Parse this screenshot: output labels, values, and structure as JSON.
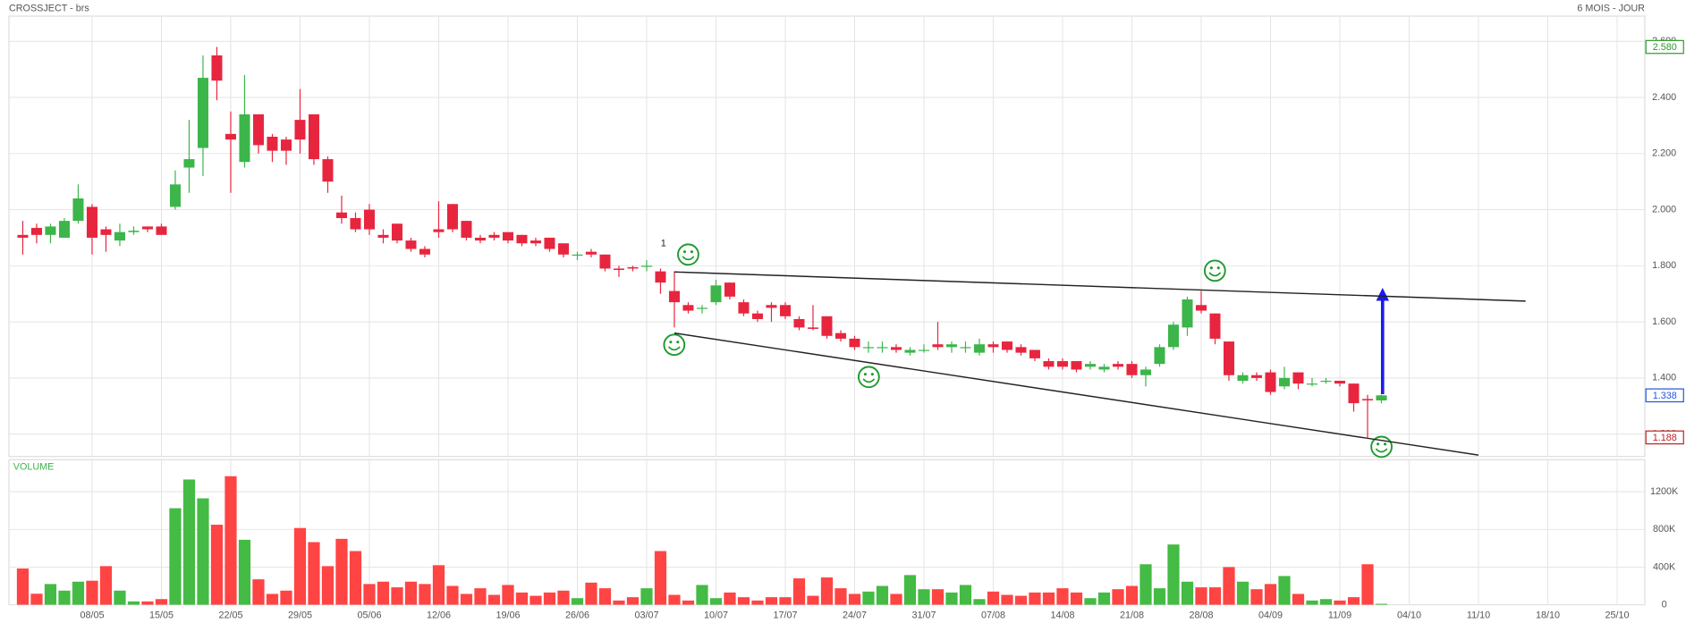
{
  "chart_data": [
    {
      "type": "candlestick",
      "title": "CROSSJECT - brs",
      "subtitle": "6 MOIS - JOUR",
      "up_color": "#3cb54a",
      "down_color": "#e8253f",
      "open": [
        1.91,
        1.935,
        1.91,
        1.9,
        1.96,
        2.01,
        1.93,
        1.89,
        1.92,
        1.94,
        1.94,
        2.01,
        2.15,
        2.22,
        2.55,
        2.27,
        2.17,
        2.34,
        2.26,
        2.25,
        2.32,
        2.34,
        2.18,
        1.99,
        1.97,
        2.0,
        1.91,
        1.95,
        1.89,
        1.86,
        1.93,
        2.02,
        1.96,
        1.9,
        1.91,
        1.92,
        1.91,
        1.89,
        1.9,
        1.88,
        1.84,
        1.85,
        1.84,
        1.79,
        1.795,
        1.8,
        1.78,
        1.71,
        1.66,
        1.65,
        1.67,
        1.74,
        1.67,
        1.63,
        1.66,
        1.66,
        1.61,
        1.58,
        1.62,
        1.56,
        1.54,
        1.51,
        1.51,
        1.51,
        1.49,
        1.5,
        1.52,
        1.51,
        1.51,
        1.49,
        1.52,
        1.53,
        1.51,
        1.5,
        1.46,
        1.46,
        1.46,
        1.44,
        1.43,
        1.45,
        1.45,
        1.41,
        1.45,
        1.51,
        1.58,
        1.66,
        1.63,
        1.53,
        1.39,
        1.41,
        1.42,
        1.37,
        1.42,
        1.38,
        1.39,
        1.39,
        1.38,
        1.325,
        1.32
      ],
      "high": [
        1.96,
        1.95,
        1.95,
        1.97,
        2.09,
        2.02,
        1.94,
        1.95,
        1.94,
        1.94,
        1.95,
        2.14,
        2.32,
        2.55,
        2.58,
        2.35,
        2.48,
        2.34,
        2.27,
        2.26,
        2.43,
        2.34,
        2.19,
        2.05,
        1.99,
        2.02,
        1.93,
        1.95,
        1.9,
        1.87,
        2.03,
        2.02,
        1.96,
        1.91,
        1.92,
        1.92,
        1.91,
        1.9,
        1.9,
        1.88,
        1.85,
        1.86,
        1.84,
        1.8,
        1.8,
        1.82,
        1.79,
        1.78,
        1.67,
        1.66,
        1.75,
        1.74,
        1.68,
        1.64,
        1.67,
        1.67,
        1.62,
        1.66,
        1.62,
        1.57,
        1.55,
        1.53,
        1.53,
        1.52,
        1.51,
        1.52,
        1.6,
        1.53,
        1.53,
        1.54,
        1.53,
        1.53,
        1.52,
        1.5,
        1.47,
        1.47,
        1.46,
        1.46,
        1.45,
        1.46,
        1.46,
        1.44,
        1.52,
        1.6,
        1.69,
        1.71,
        1.63,
        1.53,
        1.42,
        1.42,
        1.43,
        1.44,
        1.42,
        1.4,
        1.4,
        1.39,
        1.38,
        1.34,
        1.34
      ],
      "low": [
        1.84,
        1.88,
        1.88,
        1.9,
        1.95,
        1.84,
        1.85,
        1.87,
        1.91,
        1.92,
        1.91,
        2.0,
        2.06,
        2.12,
        2.39,
        2.06,
        2.15,
        2.2,
        2.17,
        2.16,
        2.2,
        2.16,
        2.06,
        1.95,
        1.92,
        1.91,
        1.88,
        1.88,
        1.85,
        1.83,
        1.9,
        1.92,
        1.89,
        1.88,
        1.89,
        1.88,
        1.87,
        1.87,
        1.85,
        1.83,
        1.82,
        1.83,
        1.78,
        1.76,
        1.78,
        1.78,
        1.7,
        1.58,
        1.63,
        1.63,
        1.66,
        1.68,
        1.62,
        1.6,
        1.6,
        1.61,
        1.57,
        1.57,
        1.54,
        1.53,
        1.5,
        1.49,
        1.49,
        1.49,
        1.48,
        1.49,
        1.5,
        1.49,
        1.49,
        1.48,
        1.49,
        1.49,
        1.48,
        1.46,
        1.43,
        1.43,
        1.42,
        1.43,
        1.42,
        1.43,
        1.4,
        1.37,
        1.44,
        1.5,
        1.55,
        1.63,
        1.52,
        1.39,
        1.38,
        1.39,
        1.34,
        1.36,
        1.36,
        1.37,
        1.38,
        1.37,
        1.28,
        1.188,
        1.31
      ],
      "close": [
        1.9,
        1.91,
        1.94,
        1.96,
        2.04,
        1.9,
        1.91,
        1.92,
        1.925,
        1.93,
        1.91,
        2.09,
        2.18,
        2.47,
        2.46,
        2.25,
        2.34,
        2.23,
        2.21,
        2.21,
        2.25,
        2.18,
        2.1,
        1.97,
        1.93,
        1.93,
        1.9,
        1.89,
        1.86,
        1.84,
        1.92,
        1.93,
        1.9,
        1.89,
        1.9,
        1.89,
        1.88,
        1.88,
        1.86,
        1.84,
        1.84,
        1.84,
        1.79,
        1.785,
        1.79,
        1.8,
        1.74,
        1.67,
        1.64,
        1.65,
        1.73,
        1.69,
        1.63,
        1.61,
        1.65,
        1.62,
        1.58,
        1.575,
        1.55,
        1.54,
        1.51,
        1.51,
        1.51,
        1.5,
        1.5,
        1.5,
        1.51,
        1.52,
        1.51,
        1.52,
        1.51,
        1.5,
        1.49,
        1.47,
        1.44,
        1.44,
        1.43,
        1.45,
        1.44,
        1.44,
        1.41,
        1.43,
        1.51,
        1.59,
        1.68,
        1.64,
        1.54,
        1.41,
        1.41,
        1.4,
        1.35,
        1.4,
        1.38,
        1.38,
        1.39,
        1.38,
        1.31,
        1.32,
        1.338
      ],
      "xlim": [
        -1,
        117
      ],
      "ylim": [
        1.12,
        2.69
      ],
      "yticks": [
        {
          "value": 1.2,
          "label": "1.200"
        },
        {
          "value": 1.4,
          "label": "1.400"
        },
        {
          "value": 1.6,
          "label": "1.600"
        },
        {
          "value": 1.8,
          "label": "1.800"
        },
        {
          "value": 2.0,
          "label": "2.000"
        },
        {
          "value": 2.2,
          "label": "2.200"
        },
        {
          "value": 2.4,
          "label": "2.400"
        },
        {
          "value": 2.6,
          "label": "2.600"
        }
      ],
      "price_labels": [
        {
          "value": 2.58,
          "label": "2.580",
          "color": "#2a9a2a"
        },
        {
          "value": 1.338,
          "label": "1.338",
          "color": "#2255dd"
        },
        {
          "value": 1.188,
          "label": "1.188",
          "color": "#c02020"
        }
      ],
      "trendlines": [
        {
          "x": [
            47,
            108.4
          ],
          "y": [
            1.778,
            1.674
          ],
          "color": "#222222"
        },
        {
          "x": [
            47,
            105
          ],
          "y": [
            1.56,
            1.125
          ],
          "color": "#222222"
        }
      ],
      "annotation": "1"
    },
    {
      "type": "bar",
      "title": "VOLUME",
      "up_color": "#44bb44",
      "down_color": "#ff4444",
      "values": [
        385,
        117,
        220,
        150,
        245,
        255,
        410,
        150,
        35,
        35,
        60,
        1025,
        1330,
        1130,
        850,
        1365,
        690,
        270,
        115,
        150,
        815,
        665,
        410,
        700,
        570,
        220,
        245,
        185,
        245,
        220,
        420,
        200,
        115,
        175,
        105,
        210,
        130,
        95,
        130,
        150,
        70,
        235,
        175,
        45,
        80,
        175,
        570,
        105,
        45,
        210,
        70,
        130,
        80,
        45,
        80,
        80,
        280,
        95,
        290,
        175,
        115,
        140,
        200,
        115,
        315,
        165,
        165,
        130,
        210,
        60,
        140,
        105,
        95,
        130,
        130,
        175,
        130,
        70,
        130,
        165,
        200,
        430,
        175,
        640,
        245,
        185,
        185,
        400,
        245,
        165,
        220,
        305,
        115,
        45,
        60,
        45,
        80,
        430,
        10
      ],
      "xlim": [
        -1,
        117
      ],
      "ylim": [
        0,
        1540
      ],
      "yticks": [
        0,
        {
          "value": 400,
          "label": "400K"
        },
        {
          "value": 800,
          "label": "800K"
        },
        {
          "value": 1200,
          "label": "1200K"
        }
      ],
      "xticks": [
        {
          "value": 5,
          "label": "08/05"
        },
        {
          "value": 10,
          "label": "15/05"
        },
        {
          "value": 15,
          "label": "22/05"
        },
        {
          "value": 20,
          "label": "29/05"
        },
        {
          "value": 25,
          "label": "05/06"
        },
        {
          "value": 30,
          "label": "12/06"
        },
        {
          "value": 35,
          "label": "19/06"
        },
        {
          "value": 40,
          "label": "26/06"
        },
        {
          "value": 45,
          "label": "03/07"
        },
        {
          "value": 50,
          "label": "10/07"
        },
        {
          "value": 55,
          "label": "17/07"
        },
        {
          "value": 60,
          "label": "24/07"
        },
        {
          "value": 65,
          "label": "31/07"
        },
        {
          "value": 70,
          "label": "07/08"
        },
        {
          "value": 75,
          "label": "14/08"
        },
        {
          "value": 80,
          "label": "21/08"
        },
        {
          "value": 85,
          "label": "28/08"
        },
        {
          "value": 90,
          "label": "04/09"
        },
        {
          "value": 95,
          "label": "11/09"
        },
        {
          "value": 100,
          "label": "04/10"
        },
        {
          "value": 105,
          "label": "11/10"
        },
        {
          "value": 110,
          "label": "18/10"
        },
        {
          "value": 115,
          "label": "25/10"
        }
      ]
    }
  ]
}
